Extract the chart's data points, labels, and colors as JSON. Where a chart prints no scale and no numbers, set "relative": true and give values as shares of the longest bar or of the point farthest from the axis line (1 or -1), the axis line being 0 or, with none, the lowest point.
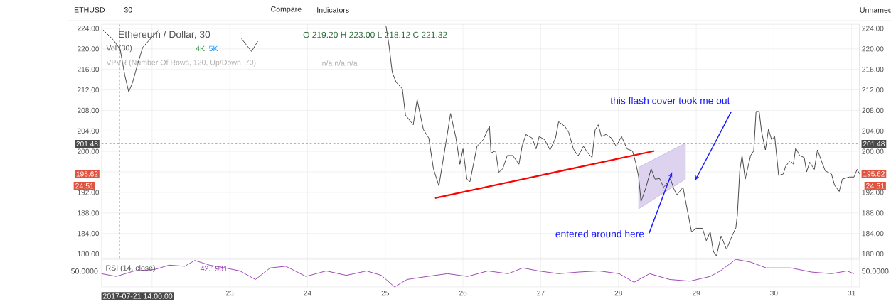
{
  "chart_data": [
    {
      "type": "line",
      "title": "Ethereum / Dollar, 30",
      "subtitle": "O 219.20 H 223.00 L 218.12 C 221.32",
      "series": [
        {
          "type": "line",
          "color": "#b39ddb",
          "x": [
            28.26,
            28.86
          ],
          "values": [
            null,
            null
          ],
          "lower": [
            188.8,
            194.6
          ],
          "upper": [
            196.9,
            201.6
          ]
        },
        {
          "type": "line",
          "color": "#3c3c3c",
          "x": [
            21.37,
            21.5,
            21.59,
            21.65,
            21.7,
            21.75,
            21.82,
            21.88,
            21.97,
            22.01,
            22.09,
            22.6,
            23.15,
            23.28,
            23.36,
            24.5,
            25.01,
            25.05,
            25.09,
            25.14,
            25.22,
            25.26,
            25.36,
            25.41,
            25.49,
            25.56,
            25.62,
            25.69,
            25.79,
            25.84,
            25.91,
            25.96,
            26.0,
            26.05,
            26.09,
            26.18,
            26.26,
            26.34,
            26.36,
            26.42,
            26.46,
            26.51,
            26.57,
            26.64,
            26.72,
            26.76,
            26.81,
            26.89,
            26.94,
            26.98,
            27.05,
            27.12,
            27.19,
            27.23,
            27.31,
            27.36,
            27.42,
            27.48,
            27.55,
            27.6,
            27.66,
            27.7,
            27.74,
            27.78,
            27.84,
            27.91,
            27.97,
            28.04,
            28.11,
            28.18,
            28.22,
            28.26,
            28.29,
            28.35,
            28.42,
            28.47,
            28.53,
            28.58,
            28.67,
            28.71,
            28.75,
            28.83,
            28.87,
            28.94,
            29.0,
            29.08,
            29.13,
            29.18,
            29.22,
            29.26,
            29.32,
            29.39,
            29.46,
            29.51,
            29.53,
            29.56,
            29.59,
            29.63,
            29.68,
            29.7,
            29.74,
            29.77,
            29.81,
            29.84,
            29.89,
            29.93,
            29.97,
            30.01,
            30.04,
            30.06,
            30.12,
            30.15,
            30.21,
            30.25,
            30.28,
            30.33,
            30.39,
            30.42,
            30.46,
            30.52,
            30.56,
            30.61,
            30.66,
            30.74,
            30.78,
            30.84,
            30.88,
            30.97,
            31.03,
            31.07,
            31.1
          ],
          "values": [
            223.7,
            221.8,
            219.9,
            214.8,
            211.6,
            213.5,
            217.3,
            220.3,
            221.8,
            222.5,
            223.7,
            null,
            222.0,
            219.5,
            221.5,
            null,
            224.4,
            220.5,
            215.4,
            213.5,
            212.2,
            207.1,
            205.2,
            210.1,
            204.3,
            202.6,
            196.6,
            193.3,
            202.6,
            207.4,
            202.6,
            197.5,
            200.5,
            194.6,
            194.1,
            201.0,
            202.3,
            204.9,
            199.7,
            200.1,
            195.9,
            196.6,
            199.2,
            199.2,
            197.5,
            201.0,
            203.3,
            202.6,
            200.5,
            202.9,
            202.3,
            200.3,
            202.6,
            205.8,
            204.9,
            203.7,
            200.5,
            199.1,
            201.0,
            199.8,
            198.8,
            204.2,
            205.2,
            202.9,
            203.3,
            202.6,
            201.0,
            202.9,
            200.5,
            200.1,
            197.9,
            195.0,
            190.2,
            192.8,
            196.6,
            194.6,
            194.7,
            193.0,
            194.6,
            192.8,
            191.5,
            193.0,
            189.8,
            184.3,
            185.0,
            185.0,
            182.6,
            184.3,
            180.5,
            179.6,
            183.5,
            180.9,
            183.5,
            185.1,
            187.7,
            196.2,
            199.2,
            194.6,
            197.9,
            199.2,
            200.1,
            207.8,
            207.8,
            203.9,
            200.3,
            204.3,
            202.3,
            202.9,
            198.4,
            195.3,
            195.6,
            197.1,
            198.2,
            197.5,
            200.7,
            199.2,
            198.8,
            196.0,
            197.9,
            196.5,
            200.3,
            198.2,
            196.2,
            195.6,
            193.4,
            192.2,
            194.6,
            195.0,
            195.0,
            196.5,
            195.6
          ]
        },
        {
          "type": "line",
          "color": "#ff0000",
          "x": [
            25.64,
            28.46
          ],
          "values": [
            190.9,
            200.1
          ]
        }
      ],
      "xlim": [
        21.35,
        31.1
      ],
      "ylim": [
        179.2,
        224.8
      ],
      "xticks": [
        {
          "value": 22,
          "label": null
        },
        23,
        24,
        25,
        26,
        27,
        28,
        29,
        30,
        31
      ],
      "yticks": [
        {
          "value": 180,
          "label": "180.00"
        },
        {
          "value": 184,
          "label": "184.00"
        },
        {
          "value": 188,
          "label": "188.00"
        },
        {
          "value": 192,
          "label": "192.00"
        },
        {
          "value": 196,
          "label": null
        },
        {
          "value": 200,
          "label": "200.00"
        },
        {
          "value": 204,
          "label": "204.00"
        },
        {
          "value": 208,
          "label": "208.00"
        },
        {
          "value": 212,
          "label": "212.00"
        },
        {
          "value": 216,
          "label": "216.00"
        },
        {
          "value": 220,
          "label": "220.00"
        },
        {
          "value": 224,
          "label": "224.00"
        }
      ],
      "y2lim": [
        179.2,
        224.8
      ],
      "y2ticks": [
        {
          "value": 180,
          "label": "180.00"
        },
        {
          "value": 184,
          "label": "184.00"
        },
        {
          "value": 188,
          "label": "188.00"
        },
        {
          "value": 192,
          "label": "192.00"
        },
        {
          "value": 196,
          "label": null
        },
        {
          "value": 200,
          "label": "200.00"
        },
        {
          "value": 204,
          "label": "204.00"
        },
        {
          "value": 208,
          "label": "208.00"
        },
        {
          "value": 212,
          "label": "212.00"
        },
        {
          "value": 216,
          "label": "216.00"
        },
        {
          "value": 220,
          "label": "220.00"
        },
        {
          "value": 224,
          "label": "224.00"
        }
      ],
      "grid": true,
      "tick_labels": "y",
      "ref_lines": [
        {
          "axis": "y",
          "value": 201.48,
          "label": "201.48",
          "color": "#888888",
          "line_style": "dashed"
        },
        {
          "axis": "x",
          "value": 21.5833,
          "color": "#888888",
          "line_style": "dashed"
        }
      ],
      "annotations": [
        "this flash cover took me out",
        "entered around here",
        {
          "text": "195.62",
          "x": 31.1,
          "y": 195.6
        },
        "Vol (30)",
        "4K",
        "5K",
        "VPVR (Number Of Rows, 120, Up/Down, 70)",
        "n/a n/a n/a",
        "24:51",
        "ETHUSD",
        "30",
        "Compare",
        "Indicators",
        "Unnamed",
        "2017-07-21 14:00:00"
      ]
    },
    {
      "type": "line",
      "color": "#8e24aa",
      "relative": true,
      "grid": "x",
      "tick_labels": "x",
      "x": [
        21.35,
        21.54,
        21.77,
        22.03,
        22.22,
        22.42,
        22.55,
        22.74,
        22.94,
        23.13,
        23.33,
        23.52,
        23.72,
        23.98,
        24.24,
        24.5,
        24.76,
        24.95,
        25.12,
        25.28,
        25.54,
        25.8,
        26.06,
        26.32,
        26.58,
        26.77,
        26.97,
        27.23,
        27.49,
        27.75,
        28.01,
        28.2,
        28.4,
        28.66,
        28.92,
        29.18,
        29.31,
        29.51,
        29.7,
        29.9,
        30.22,
        30.48,
        30.74,
        30.94,
        31.03
      ],
      "values": [
        0.48,
        0.38,
        0.58,
        0.63,
        0.79,
        0.75,
        0.96,
        0.79,
        0.69,
        0.58,
        0.27,
        0.69,
        0.75,
        0.38,
        0.58,
        0.42,
        0.58,
        0.42,
        0,
        0.27,
        0.38,
        0.48,
        0.38,
        0.58,
        0.48,
        0.69,
        0.58,
        0.48,
        0.54,
        0.58,
        0.48,
        0.17,
        0.48,
        0.27,
        0.21,
        0.38,
        0.58,
        1,
        0.9,
        0.69,
        0.69,
        0.54,
        0.48,
        0.58,
        0.48
      ],
      "xlim": [
        21.35,
        31.1
      ],
      "xticks": [
        {
          "value": 22,
          "label": null
        },
        23,
        24,
        25,
        26,
        27,
        28,
        29,
        30,
        31
      ],
      "annotations": [
        "RSI (14, close)",
        "42.1961",
        "50.0000"
      ]
    }
  ]
}
